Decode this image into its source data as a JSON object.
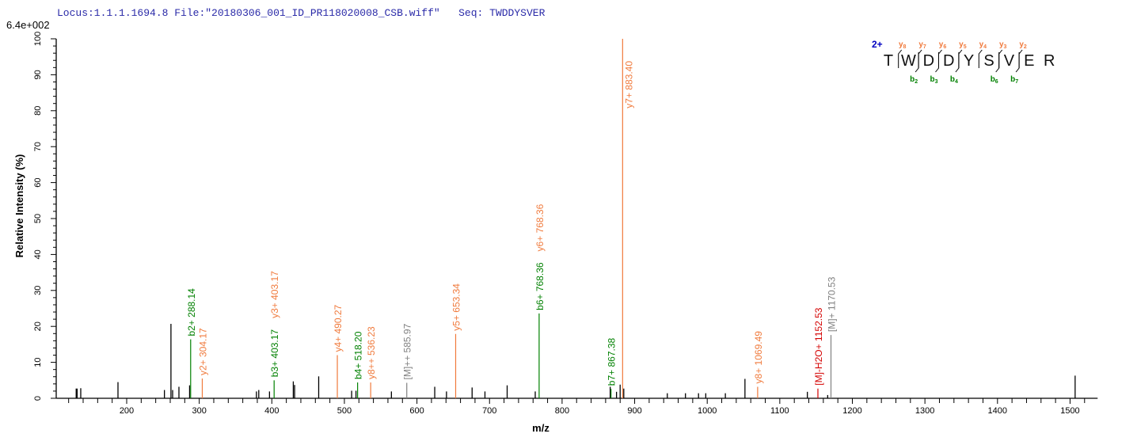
{
  "header": {
    "locus": "Locus:1.1.1.1694.8",
    "file": "File:\"20180306_001_ID_PR118020008_CSB.wiff\"",
    "seq_label": "Seq:",
    "seq": "TWDDYSVER"
  },
  "colors": {
    "b": "#008000",
    "y": "#f07a3c",
    "M": "#808080",
    "H2O": "#d40000",
    "other": "#000000",
    "header": "#2a2aa8"
  },
  "sequence_graphic": {
    "charge": "2+",
    "residues": [
      "T",
      "W",
      "D",
      "D",
      "Y",
      "S",
      "V",
      "E",
      "R"
    ],
    "y_ions": [
      {
        "label": "y",
        "sub": "8",
        "after": 1
      },
      {
        "label": "y",
        "sub": "7",
        "after": 2
      },
      {
        "label": "y",
        "sub": "6",
        "after": 3
      },
      {
        "label": "y",
        "sub": "5",
        "after": 4
      },
      {
        "label": "y",
        "sub": "4",
        "after": 5
      },
      {
        "label": "y",
        "sub": "3",
        "after": 6
      },
      {
        "label": "y",
        "sub": "2",
        "after": 7
      }
    ],
    "b_ions": [
      {
        "label": "b",
        "sub": "2",
        "after": 2
      },
      {
        "label": "b",
        "sub": "3",
        "after": 3
      },
      {
        "label": "b",
        "sub": "4",
        "after": 4
      },
      {
        "label": "b",
        "sub": "6",
        "after": 6
      },
      {
        "label": "b",
        "sub": "7",
        "after": 7
      }
    ]
  },
  "chart_data": {
    "type": "bar",
    "title": "",
    "max_intensity_label": "6.4e+002",
    "xlabel": "m/z",
    "ylabel": "Relative   Intensity (%)",
    "xlim": [
      103,
      1538
    ],
    "ylim": [
      0,
      100
    ],
    "xticks": [
      200,
      300,
      400,
      500,
      600,
      700,
      800,
      900,
      1000,
      1100,
      1200,
      1300,
      1400,
      1500
    ],
    "yticks": [
      0,
      10,
      20,
      30,
      40,
      50,
      60,
      70,
      80,
      90,
      100
    ],
    "grid": false,
    "peaks": [
      {
        "mz": 130.4,
        "intensity": 2.7
      },
      {
        "mz": 131.7,
        "intensity": 2.7
      },
      {
        "mz": 136.7,
        "intensity": 2.8
      },
      {
        "mz": 188,
        "intensity": 4.5
      },
      {
        "mz": 252,
        "intensity": 2.3
      },
      {
        "mz": 261,
        "intensity": 20.7
      },
      {
        "mz": 263.3,
        "intensity": 2.3
      },
      {
        "mz": 272,
        "intensity": 3.2
      },
      {
        "mz": 286.7,
        "intensity": 3.6
      },
      {
        "mz": 288.14,
        "intensity": 16.4,
        "type": "b",
        "label": "b2+ 288.14"
      },
      {
        "mz": 304.17,
        "intensity": 5.5,
        "type": "y",
        "label": "y2+ 304.17"
      },
      {
        "mz": 378.8,
        "intensity": 1.9
      },
      {
        "mz": 382,
        "intensity": 2.3
      },
      {
        "mz": 396.8,
        "intensity": 1.9
      },
      {
        "mz": 403.17,
        "intensity": 5.0,
        "type": "b",
        "label": "b3+ 403.17",
        "extra_label": "y3+ 403.17",
        "extra_type": "y"
      },
      {
        "mz": 429.6,
        "intensity": 4.7
      },
      {
        "mz": 431.4,
        "intensity": 3.7
      },
      {
        "mz": 464.6,
        "intensity": 6.1
      },
      {
        "mz": 490.27,
        "intensity": 12.0,
        "type": "y",
        "label": "y4+ 490.27"
      },
      {
        "mz": 510,
        "intensity": 2.1
      },
      {
        "mz": 516,
        "intensity": 2.1
      },
      {
        "mz": 518.2,
        "intensity": 4.4,
        "type": "b",
        "label": "b4+ 518.20"
      },
      {
        "mz": 536.23,
        "intensity": 4.4,
        "type": "y",
        "label": "y8++ 536.23"
      },
      {
        "mz": 564.8,
        "intensity": 1.9
      },
      {
        "mz": 585.97,
        "intensity": 4.3,
        "type": "M",
        "label": "[M]++ 585.97"
      },
      {
        "mz": 624.5,
        "intensity": 3.2
      },
      {
        "mz": 640.7,
        "intensity": 1.9
      },
      {
        "mz": 653.34,
        "intensity": 17.9,
        "type": "y",
        "label": "y5+ 653.34"
      },
      {
        "mz": 676,
        "intensity": 3.0
      },
      {
        "mz": 693.7,
        "intensity": 1.9
      },
      {
        "mz": 724.3,
        "intensity": 3.6
      },
      {
        "mz": 763,
        "intensity": 1.9
      },
      {
        "mz": 768.36,
        "intensity": 23.6,
        "type": "b",
        "label": "b6+ 768.36",
        "extra_label": "y6+ 768.36",
        "extra_type": "y"
      },
      {
        "mz": 866.3,
        "intensity": 3.2
      },
      {
        "mz": 867.38,
        "intensity": 2.6,
        "type": "b",
        "label": "b7+ 867.38"
      },
      {
        "mz": 875,
        "intensity": 1.8
      },
      {
        "mz": 880,
        "intensity": 3.8
      },
      {
        "mz": 883.4,
        "intensity": 100,
        "type": "y",
        "label": "y7+ 883.40"
      },
      {
        "mz": 885,
        "intensity": 2.7
      },
      {
        "mz": 945,
        "intensity": 1.4
      },
      {
        "mz": 970,
        "intensity": 1.4
      },
      {
        "mz": 988,
        "intensity": 1.4
      },
      {
        "mz": 998,
        "intensity": 1.4
      },
      {
        "mz": 1025,
        "intensity": 1.4
      },
      {
        "mz": 1052,
        "intensity": 5.4
      },
      {
        "mz": 1069.49,
        "intensity": 3.2,
        "type": "y",
        "label": "y8+ 1069.49"
      },
      {
        "mz": 1138,
        "intensity": 1.8
      },
      {
        "mz": 1152.53,
        "intensity": 2.7,
        "type": "H2O",
        "label": "[M]-H2O+ 1152.53"
      },
      {
        "mz": 1166,
        "intensity": 0.9
      },
      {
        "mz": 1170.53,
        "intensity": 17.6,
        "type": "M",
        "label": "[M]+ 1170.53"
      },
      {
        "mz": 1507,
        "intensity": 6.3
      }
    ]
  }
}
